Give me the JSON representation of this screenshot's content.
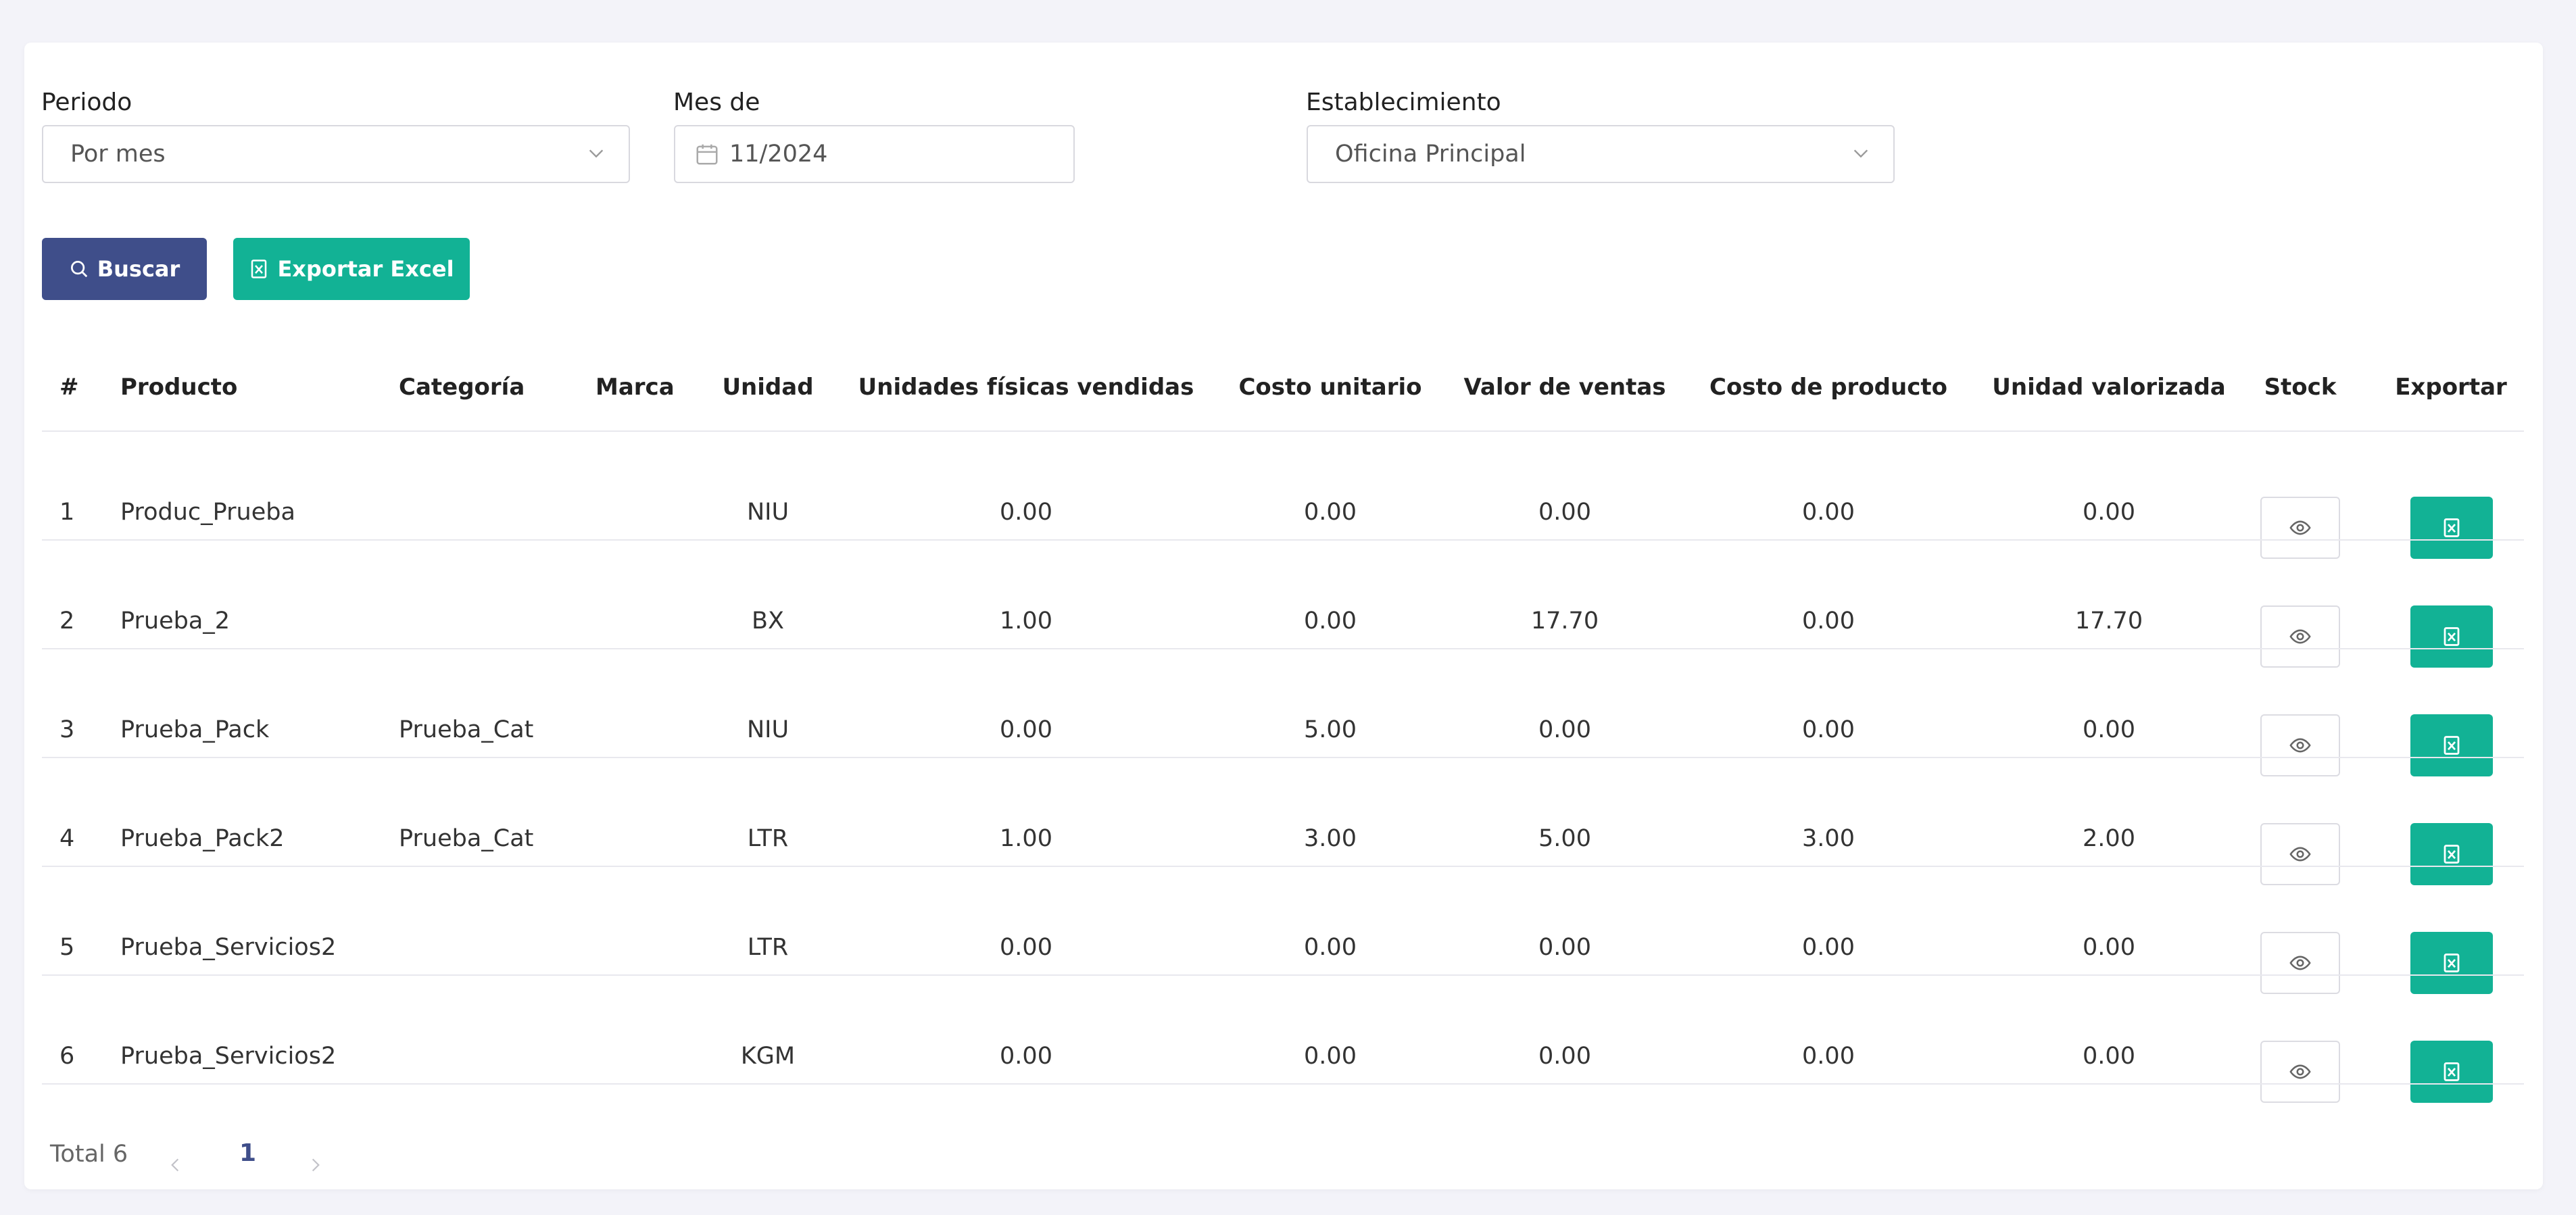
{
  "filters": {
    "periodo_label": "Periodo",
    "periodo_value": "Por mes",
    "mes_label": "Mes de",
    "mes_value": "11/2024",
    "establecimiento_label": "Establecimiento",
    "establecimiento_value": "Oficina Principal"
  },
  "actions": {
    "buscar_label": "Buscar",
    "exportar_label": "Exportar Excel"
  },
  "table": {
    "headers": [
      "#",
      "Producto",
      "Categoría",
      "Marca",
      "Unidad",
      "Unidades físicas vendidas",
      "Costo unitario",
      "Valor de ventas",
      "Costo de producto",
      "Unidad valorizada",
      "Stock",
      "Exportar"
    ],
    "rows": [
      {
        "num": "1",
        "producto": "Produc_Prueba",
        "categoria": "",
        "marca": "",
        "unidad": "NIU",
        "vendidas": "0.00",
        "costo_unitario": "0.00",
        "valor_ventas": "0.00",
        "costo_producto": "0.00",
        "valorizada": "0.00"
      },
      {
        "num": "2",
        "producto": "Prueba_2",
        "categoria": "",
        "marca": "",
        "unidad": "BX",
        "vendidas": "1.00",
        "costo_unitario": "0.00",
        "valor_ventas": "17.70",
        "costo_producto": "0.00",
        "valorizada": "17.70"
      },
      {
        "num": "3",
        "producto": "Prueba_Pack",
        "categoria": "Prueba_Cat",
        "marca": "",
        "unidad": "NIU",
        "vendidas": "0.00",
        "costo_unitario": "5.00",
        "valor_ventas": "0.00",
        "costo_producto": "0.00",
        "valorizada": "0.00"
      },
      {
        "num": "4",
        "producto": "Prueba_Pack2",
        "categoria": "Prueba_Cat",
        "marca": "",
        "unidad": "LTR",
        "vendidas": "1.00",
        "costo_unitario": "3.00",
        "valor_ventas": "5.00",
        "costo_producto": "3.00",
        "valorizada": "2.00"
      },
      {
        "num": "5",
        "producto": "Prueba_Servicios2",
        "categoria": "",
        "marca": "",
        "unidad": "LTR",
        "vendidas": "0.00",
        "costo_unitario": "0.00",
        "valor_ventas": "0.00",
        "costo_producto": "0.00",
        "valorizada": "0.00"
      },
      {
        "num": "6",
        "producto": "Prueba_Servicios2",
        "categoria": "",
        "marca": "",
        "unidad": "KGM",
        "vendidas": "0.00",
        "costo_unitario": "0.00",
        "valor_ventas": "0.00",
        "costo_producto": "0.00",
        "valorizada": "0.00"
      }
    ]
  },
  "pagination": {
    "total_label": "Total 6",
    "current_page": "1"
  },
  "colors": {
    "primary": "#3f4e8a",
    "success": "#12b295",
    "background": "#f3f3f9"
  },
  "icons": [
    "chevron-down-icon",
    "calendar-icon",
    "search-icon",
    "excel-file-icon",
    "eye-icon",
    "chevron-left-icon",
    "chevron-right-icon"
  ]
}
